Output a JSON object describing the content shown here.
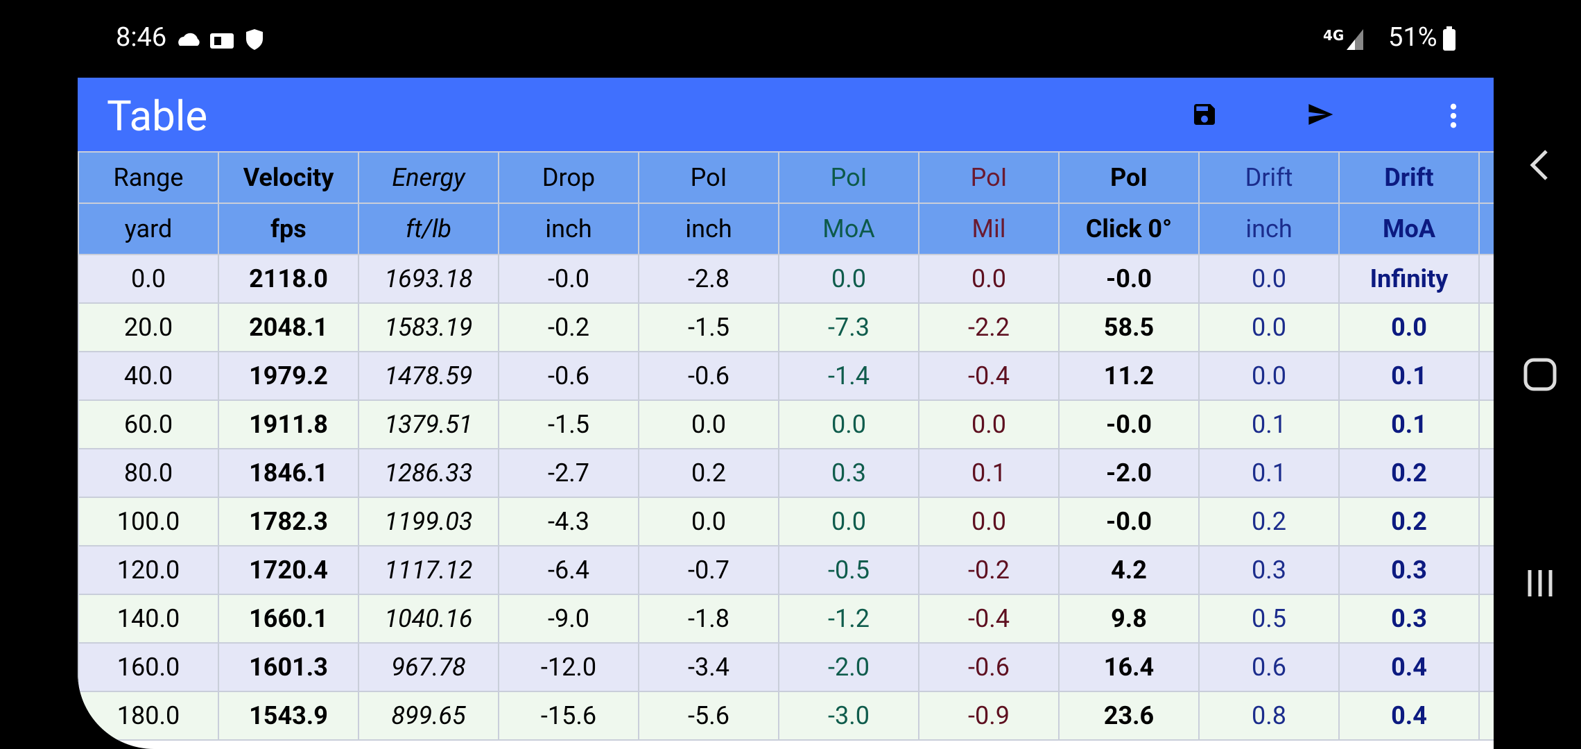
{
  "status_bar": {
    "time": "8:46",
    "battery": "51%"
  },
  "app_bar": {
    "title": "Table"
  },
  "table": {
    "headers": [
      "Range",
      "Velocity",
      "Energy",
      "Drop",
      "PoI",
      "PoI",
      "PoI",
      "PoI",
      "Drift",
      "Drift"
    ],
    "units": [
      "yard",
      "fps",
      "ft/lb",
      "inch",
      "inch",
      "MoA",
      "Mil",
      "Click 0°",
      "inch",
      "MoA"
    ],
    "rows": [
      [
        "0.0",
        "2118.0",
        "1693.18",
        "-0.0",
        "-2.8",
        "0.0",
        "0.0",
        "-0.0",
        "0.0",
        "Infinity"
      ],
      [
        "20.0",
        "2048.1",
        "1583.19",
        "-0.2",
        "-1.5",
        "-7.3",
        "-2.2",
        "58.5",
        "0.0",
        "0.0"
      ],
      [
        "40.0",
        "1979.2",
        "1478.59",
        "-0.6",
        "-0.6",
        "-1.4",
        "-0.4",
        "11.2",
        "0.0",
        "0.1"
      ],
      [
        "60.0",
        "1911.8",
        "1379.51",
        "-1.5",
        "0.0",
        "0.0",
        "0.0",
        "-0.0",
        "0.1",
        "0.1"
      ],
      [
        "80.0",
        "1846.1",
        "1286.33",
        "-2.7",
        "0.2",
        "0.3",
        "0.1",
        "-2.0",
        "0.1",
        "0.2"
      ],
      [
        "100.0",
        "1782.3",
        "1199.03",
        "-4.3",
        "0.0",
        "0.0",
        "0.0",
        "-0.0",
        "0.2",
        "0.2"
      ],
      [
        "120.0",
        "1720.4",
        "1117.12",
        "-6.4",
        "-0.7",
        "-0.5",
        "-0.2",
        "4.2",
        "0.3",
        "0.3"
      ],
      [
        "140.0",
        "1660.1",
        "1040.16",
        "-9.0",
        "-1.8",
        "-1.2",
        "-0.4",
        "9.8",
        "0.5",
        "0.3"
      ],
      [
        "160.0",
        "1601.3",
        "967.78",
        "-12.0",
        "-3.4",
        "-2.0",
        "-0.6",
        "16.4",
        "0.6",
        "0.4"
      ],
      [
        "180.0",
        "1543.9",
        "899.65",
        "-15.6",
        "-5.6",
        "-3.0",
        "-0.9",
        "23.6",
        "0.8",
        "0.4"
      ]
    ]
  }
}
